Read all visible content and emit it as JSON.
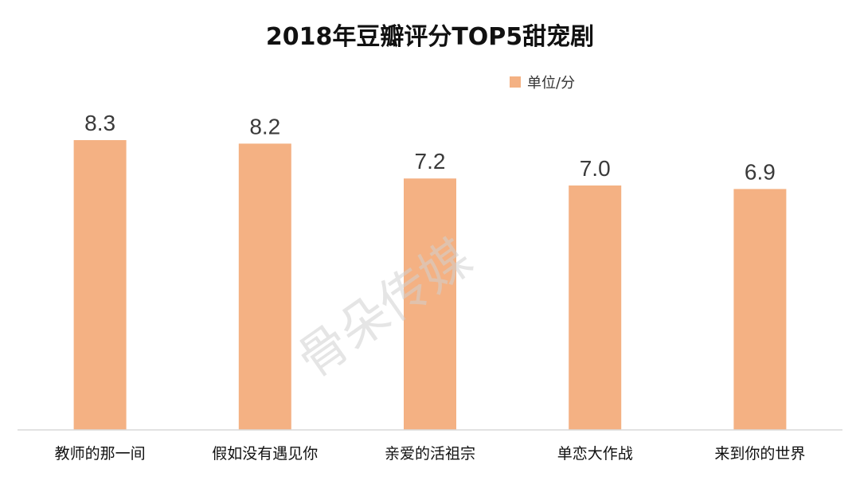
{
  "chart_data": {
    "type": "bar",
    "title": "2018年豆瓣评分TOP5甜宠剧",
    "legend": "单位/分",
    "legend_position": "top-right",
    "categories": [
      "教师的那一间",
      "假如没有遇见你",
      "亲爱的活祖宗",
      "单恋大作战",
      "来到你的世界"
    ],
    "series": [
      {
        "name": "单位/分",
        "values": [
          8.3,
          8.2,
          7.2,
          7.0,
          6.9
        ],
        "labels": [
          "8.3",
          "8.2",
          "7.2",
          "7.0",
          "6.9"
        ]
      }
    ],
    "ylim": [
      0,
      9
    ],
    "grid": false,
    "bar_color": "#F4B183"
  },
  "watermark": "骨朵传媒"
}
